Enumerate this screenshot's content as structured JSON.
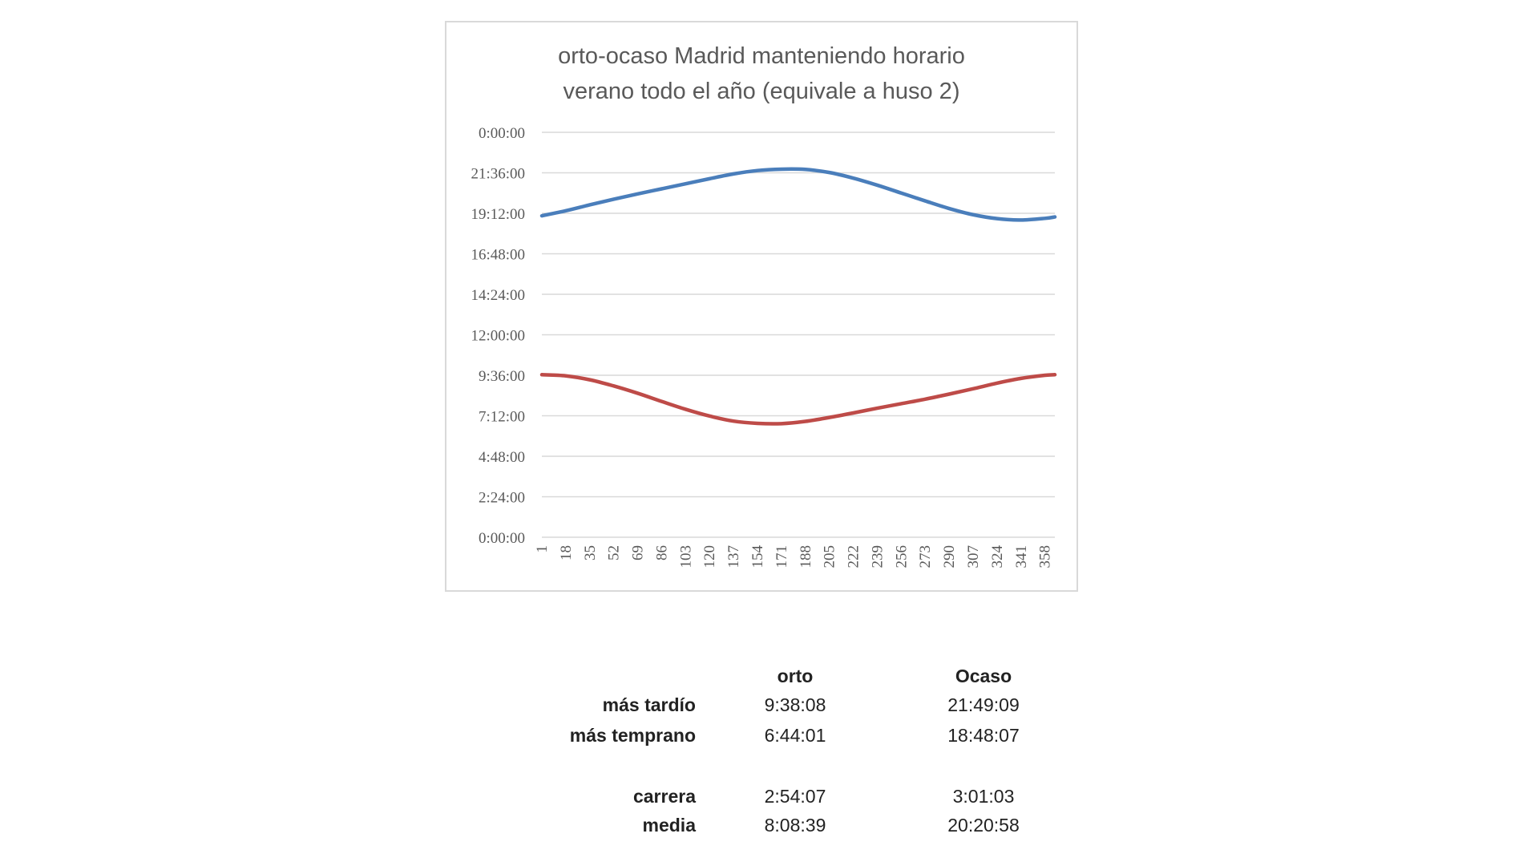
{
  "chart_data": {
    "type": "line",
    "title": "orto-ocaso Madrid manteniendo horario verano todo el año (equivale a huso 2)",
    "title_lines": [
      "orto-ocaso Madrid manteniendo horario",
      "verano todo el año (equivale a huso 2)"
    ],
    "xlabel": "",
    "ylabel": "",
    "x_ticks": [
      "1",
      "18",
      "35",
      "52",
      "69",
      "86",
      "103",
      "120",
      "137",
      "154",
      "171",
      "188",
      "205",
      "222",
      "239",
      "256",
      "273",
      "290",
      "307",
      "324",
      "341",
      "358"
    ],
    "y_ticks": [
      "0:00:00",
      "2:24:00",
      "4:48:00",
      "7:12:00",
      "9:36:00",
      "12:00:00",
      "14:24:00",
      "16:48:00",
      "19:12:00",
      "21:36:00",
      "0:00:00"
    ],
    "ylim": [
      "0:00:00",
      "24:00:00"
    ],
    "grid": true,
    "legend": "none",
    "x": [
      1,
      18,
      35,
      52,
      69,
      86,
      103,
      120,
      137,
      154,
      171,
      188,
      205,
      222,
      239,
      256,
      273,
      290,
      307,
      324,
      341,
      358,
      365
    ],
    "series": [
      {
        "color": "#4a7ebb",
        "values": [
          "19:03",
          "19:21",
          "19:42",
          "20:02",
          "20:21",
          "20:39",
          "20:57",
          "21:15",
          "21:32",
          "21:44",
          "21:49",
          "21:48",
          "21:37",
          "21:17",
          "20:52",
          "20:24",
          "19:56",
          "19:29",
          "19:07",
          "18:53",
          "18:48",
          "18:54",
          "18:59"
        ]
      },
      {
        "color": "#be4b48",
        "values": [
          "9:38",
          "9:34",
          "9:20",
          "8:58",
          "8:32",
          "8:03",
          "7:35",
          "7:11",
          "6:53",
          "6:45",
          "6:44",
          "6:52",
          "7:06",
          "7:22",
          "7:39",
          "7:55",
          "8:11",
          "8:29",
          "8:48",
          "9:08",
          "9:25",
          "9:36",
          "9:38"
        ]
      }
    ]
  },
  "table": {
    "headers": [
      "orto",
      "Ocaso"
    ],
    "rows": [
      {
        "label": "más tardío",
        "orto": "9:38:08",
        "ocaso": "21:49:09"
      },
      {
        "label": "más temprano",
        "orto": "6:44:01",
        "ocaso": "18:48:07"
      },
      {
        "label": "carrera",
        "orto": "2:54:07",
        "ocaso": "3:01:03"
      },
      {
        "label": "media",
        "orto": "8:08:39",
        "ocaso": "20:20:58"
      }
    ]
  }
}
